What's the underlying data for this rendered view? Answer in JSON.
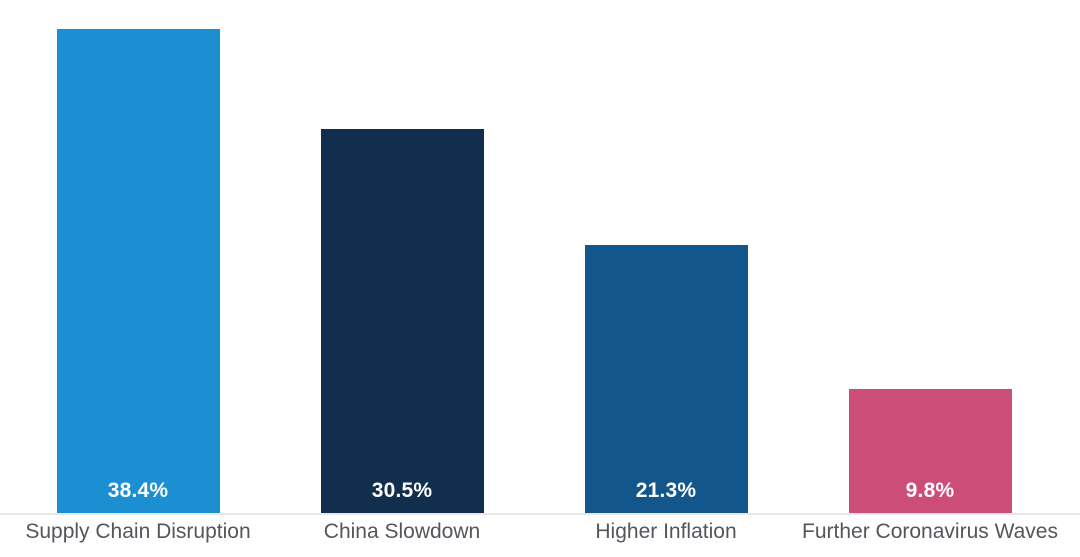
{
  "chart_data": {
    "type": "bar",
    "title": "",
    "xlabel": "",
    "ylabel": "",
    "categories": [
      "Supply Chain Disruption",
      "China Slowdown",
      "Higher Inflation",
      "Further Coronavirus Waves"
    ],
    "values": [
      38.4,
      30.5,
      21.3,
      9.8
    ],
    "value_labels": [
      "38.4%",
      "30.5%",
      "21.3%",
      "9.8%"
    ],
    "bar_colors": [
      "#1b8fd1",
      "#112e4e",
      "#12568c",
      "#cd4d79"
    ],
    "ylim": [
      0,
      40.7
    ],
    "grid": false,
    "legend": false,
    "value_label_color": "#ffffff",
    "category_label_color": "#54565c",
    "axis_line_color": "#e7e7e7",
    "background_color": "#ffffff"
  }
}
